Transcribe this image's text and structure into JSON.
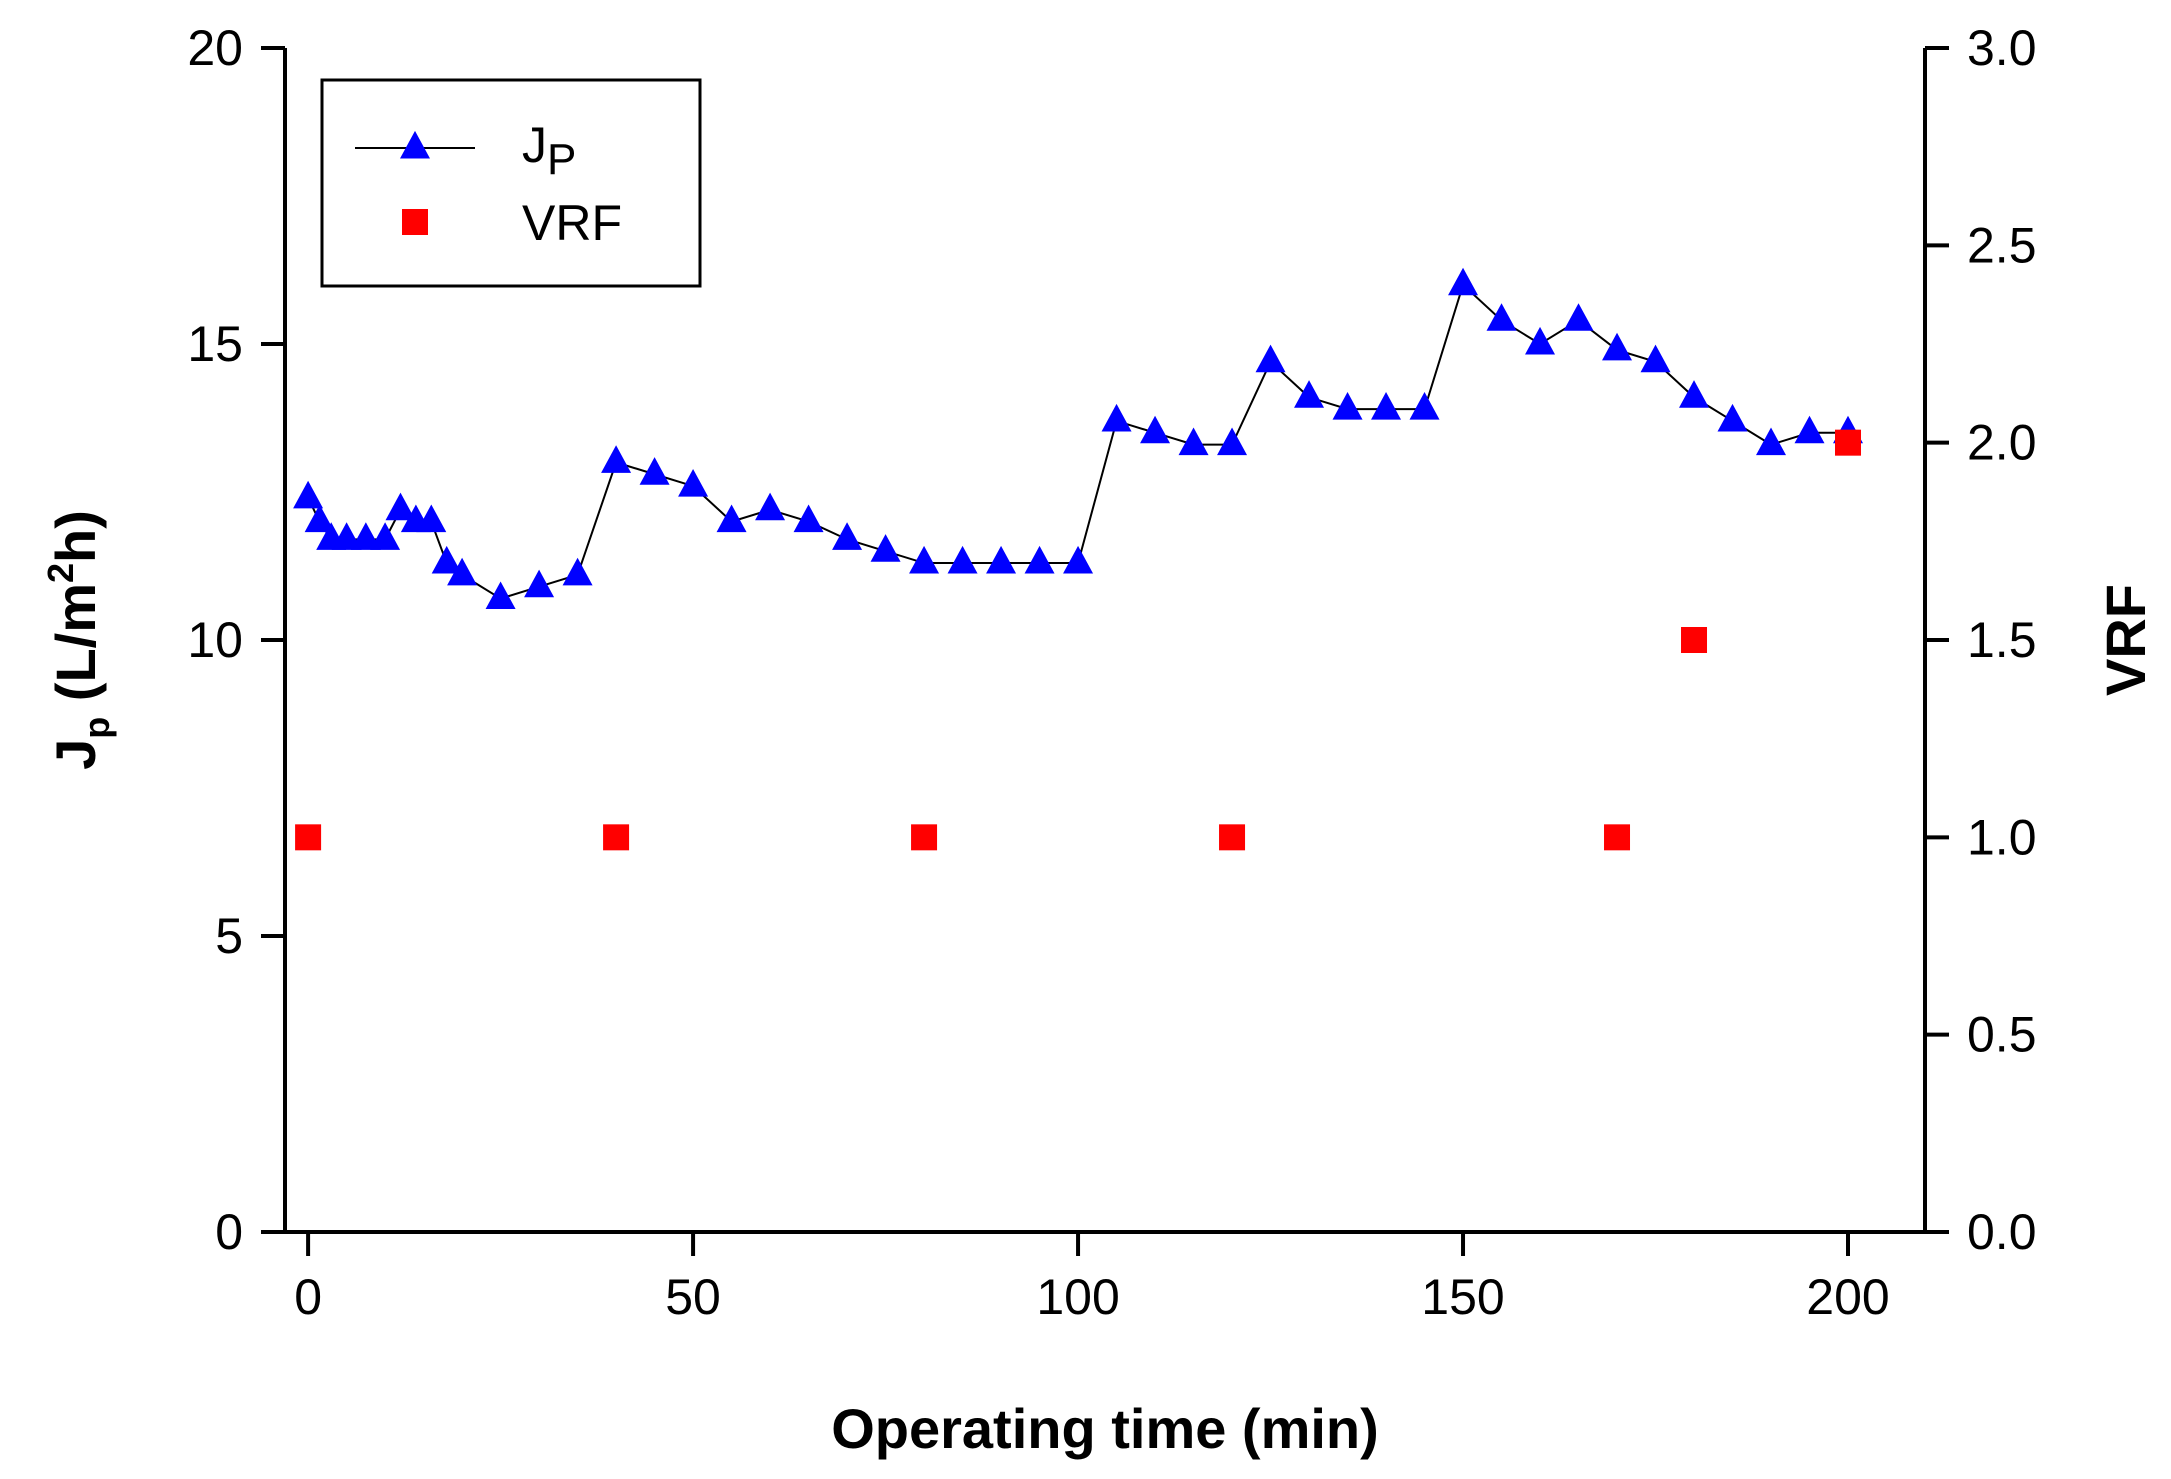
{
  "chart_data": {
    "type": "line",
    "xlabel": "Operating time (min)",
    "ylabel_left": {
      "main": "J",
      "sub": "p",
      "pre_sup": " (L/m",
      "sup": "2",
      "post_sup": "h)"
    },
    "ylabel_right": "VRF",
    "xlim": [
      -3,
      210
    ],
    "ylim_left": [
      0,
      20
    ],
    "ylim_right": [
      0.0,
      3.0
    ],
    "x_ticks": [
      0,
      50,
      100,
      150,
      200
    ],
    "x_tick_labels": [
      "0",
      "50",
      "100",
      "150",
      "200"
    ],
    "y_left_ticks": [
      0,
      5,
      10,
      15,
      20
    ],
    "y_left_tick_labels": [
      "0",
      "5",
      "10",
      "15",
      "20"
    ],
    "y_right_ticks": [
      0.0,
      0.5,
      1.0,
      1.5,
      2.0,
      2.5,
      3.0
    ],
    "y_right_tick_labels": [
      "0.0",
      "0.5",
      "1.0",
      "1.5",
      "2.0",
      "2.5",
      "3.0"
    ],
    "grid": false,
    "legend_position": "top-left",
    "series": [
      {
        "name": "Jp",
        "legend_main": "J",
        "legend_sub": "P",
        "axis": "left",
        "marker": "triangle",
        "line": true,
        "color": "#0000ff",
        "line_color": "#000000",
        "x": [
          0,
          1.5,
          3,
          5,
          7.5,
          10,
          12,
          14,
          16,
          18,
          20,
          25,
          30,
          35,
          40,
          45,
          50,
          55,
          60,
          65,
          70,
          75,
          80,
          85,
          90,
          95,
          100,
          105,
          110,
          115,
          120,
          125,
          130,
          135,
          140,
          145,
          150,
          155,
          160,
          165,
          170,
          175,
          180,
          185,
          190,
          195,
          200
        ],
        "values": [
          12.4,
          12.0,
          11.7,
          11.7,
          11.7,
          11.7,
          12.2,
          12.0,
          12.0,
          11.3,
          11.1,
          10.7,
          10.9,
          11.1,
          13.0,
          12.8,
          12.6,
          12.0,
          12.2,
          12.0,
          11.7,
          11.5,
          11.3,
          11.3,
          11.3,
          11.3,
          11.3,
          13.7,
          13.5,
          13.3,
          13.3,
          14.7,
          14.1,
          13.9,
          13.9,
          13.9,
          16.0,
          15.4,
          15.0,
          15.4,
          14.9,
          14.7,
          14.1,
          13.7,
          13.3,
          13.5,
          13.5
        ]
      },
      {
        "name": "VRF",
        "axis": "right",
        "marker": "square",
        "line": false,
        "color": "#ff0000",
        "x": [
          0,
          40,
          80,
          120,
          170,
          180,
          200
        ],
        "values": [
          1.0,
          1.0,
          1.0,
          1.0,
          1.0,
          1.5,
          2.0
        ]
      }
    ]
  }
}
